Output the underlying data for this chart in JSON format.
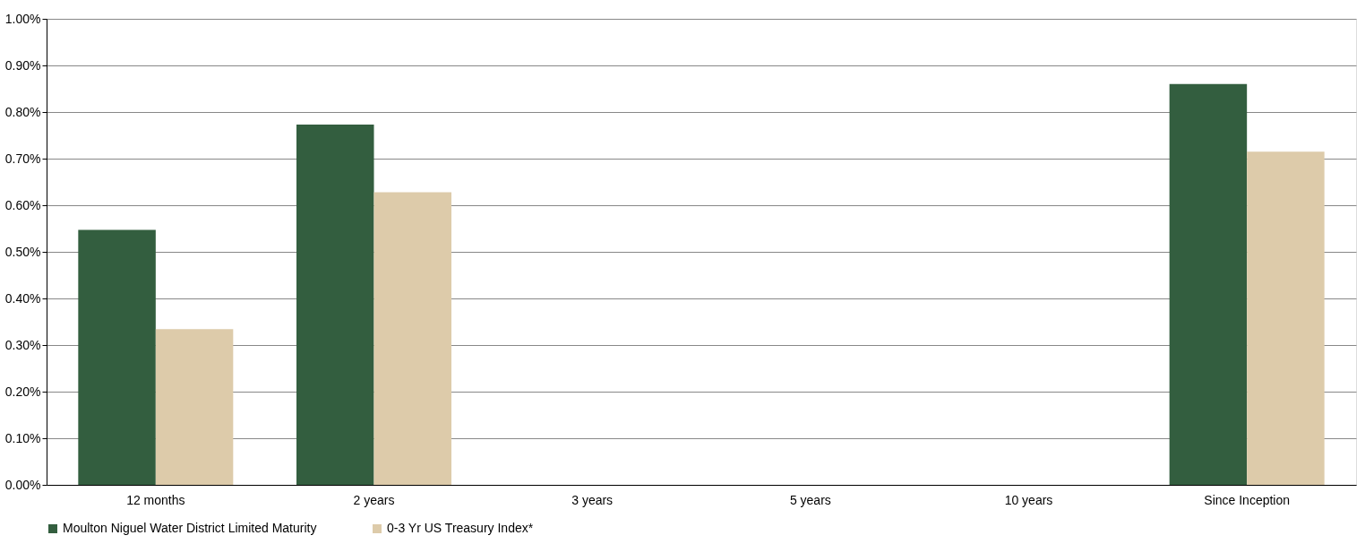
{
  "chart_data": {
    "type": "bar",
    "categories": [
      "12 months",
      "2 years",
      "3 years",
      "5 years",
      "10 years",
      "Since Inception"
    ],
    "series": [
      {
        "name": "Moulton Niguel Water District Limited Maturity",
        "color": "#335e3f",
        "values": [
          0.547,
          0.773,
          null,
          null,
          null,
          0.86
        ]
      },
      {
        "name": "0-3 Yr US Treasury Index*",
        "color": "#ddcbaa",
        "values": [
          0.334,
          0.628,
          null,
          null,
          null,
          0.715
        ]
      }
    ],
    "ylim": [
      0,
      1.0
    ],
    "yticks": [
      {
        "value": 0,
        "label": "0.00%"
      },
      {
        "value": 0.1,
        "label": "0.10%"
      },
      {
        "value": 0.2,
        "label": "0.20%"
      },
      {
        "value": 0.3,
        "label": "0.30%"
      },
      {
        "value": 0.4,
        "label": "0.40%"
      },
      {
        "value": 0.5,
        "label": "0.50%"
      },
      {
        "value": 0.6,
        "label": "0.60%"
      },
      {
        "value": 0.7,
        "label": "0.70%"
      },
      {
        "value": 0.8,
        "label": "0.80%"
      },
      {
        "value": 0.9,
        "label": "0.90%"
      },
      {
        "value": 1.0,
        "label": "1.00%"
      }
    ],
    "grid": "y",
    "legend": "bottom"
  }
}
